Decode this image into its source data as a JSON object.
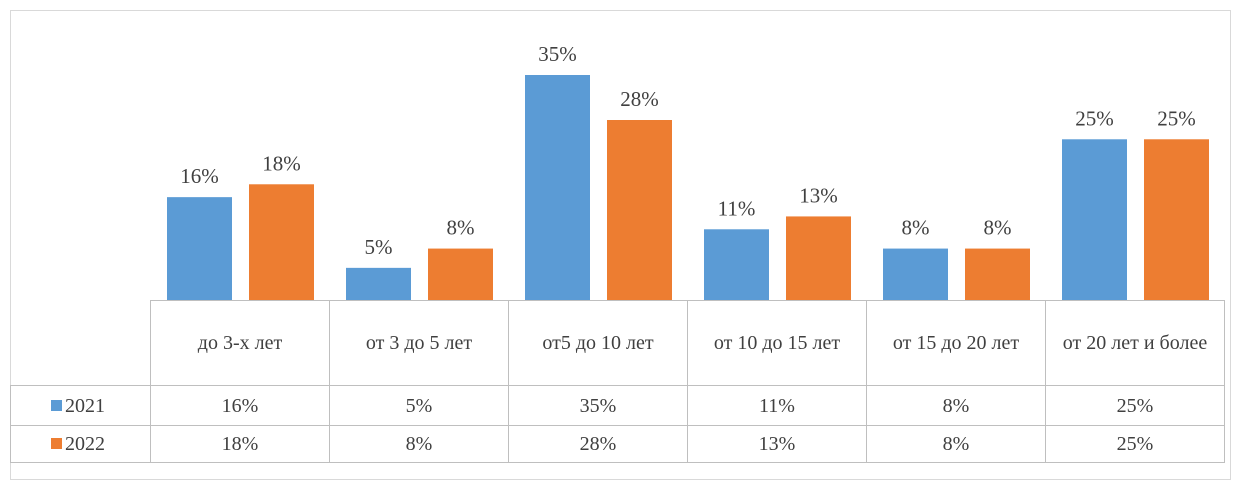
{
  "chart_data": {
    "type": "bar",
    "categories": [
      "до 3-х лет",
      "от 3 до 5 лет",
      "от5 до 10 лет",
      "от 10 до 15 лет",
      "от 15 до 20 лет",
      "от 20 лет и более"
    ],
    "series": [
      {
        "name": "2021",
        "color": "#5b9bd5",
        "values": [
          16,
          5,
          35,
          11,
          8,
          25
        ],
        "value_labels": [
          "16%",
          "5%",
          "35%",
          "11%",
          "8%",
          "25%"
        ]
      },
      {
        "name": "2022",
        "color": "#ed7d31",
        "values": [
          18,
          8,
          28,
          13,
          8,
          25
        ],
        "value_labels": [
          "18%",
          "8%",
          "28%",
          "13%",
          "8%",
          "25%"
        ]
      }
    ]
  }
}
